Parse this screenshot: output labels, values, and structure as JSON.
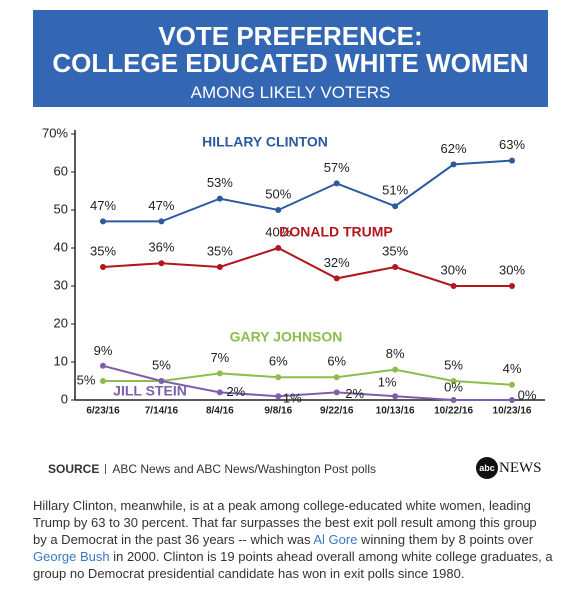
{
  "header": {
    "title_lines": [
      "VOTE PREFERENCE:",
      "COLLEGE EDUCATED WHITE WOMEN"
    ],
    "subtitle": "AMONG LIKELY VOTERS"
  },
  "chart_data": {
    "type": "line",
    "categories": [
      "6/23/16",
      "7/14/16",
      "8/4/16",
      "9/8/16",
      "9/22/16",
      "10/13/16",
      "10/22/16",
      "10/23/16"
    ],
    "series": [
      {
        "name": "HILLARY CLINTON",
        "color": "#2c5a9e",
        "values": [
          47,
          47,
          53,
          50,
          57,
          51,
          62,
          63
        ],
        "value_labels": [
          "47%",
          "47%",
          "53%",
          "50%",
          "57%",
          "51%",
          "62%",
          "63%"
        ]
      },
      {
        "name": "DONALD TRUMP",
        "color": "#b3161d",
        "values": [
          35,
          36,
          35,
          40,
          32,
          35,
          30,
          30
        ],
        "value_labels": [
          "35%",
          "36%",
          "35%",
          "40%",
          "32%",
          "35%",
          "30%",
          "30%"
        ]
      },
      {
        "name": "GARY JOHNSON",
        "color": "#8dbd4c",
        "values": [
          5,
          5,
          7,
          6,
          6,
          8,
          5,
          4
        ],
        "value_labels": [
          "5%",
          "5%",
          "7%",
          "6%",
          "6%",
          "8%",
          "5%",
          "4%"
        ]
      },
      {
        "name": "JILL STEIN",
        "color": "#7e5fab",
        "values": [
          9,
          5,
          2,
          1,
          2,
          1,
          0,
          0
        ],
        "value_labels": [
          "9%",
          null,
          "2%",
          "1%",
          "2%",
          "1%",
          "0%",
          "0%"
        ]
      }
    ],
    "ylim": [
      0,
      70
    ],
    "yticks": [
      0,
      10,
      20,
      30,
      40,
      50,
      60,
      {
        "value": 70,
        "label": "70%"
      }
    ],
    "grid": false
  },
  "source": {
    "label": "SOURCE",
    "text": "ABC News and ABC News/Washington Post polls"
  },
  "logo": {
    "mark": "abc",
    "text": "NEWS"
  },
  "article": {
    "segments": [
      {
        "text": "Hillary Clinton, meanwhile, is at a peak among college-educated white women, leading Trump by 63 to 30 percent. That far surpasses the best exit poll result among this group by a Democrat in the past 36 years -- which was "
      },
      {
        "text": "Al Gore",
        "link": true
      },
      {
        "text": " winning them by 8 points over "
      },
      {
        "text": "George Bush",
        "link": true
      },
      {
        "text": " in 2000. Clinton is 19 points ahead overall among white college graduates, a group no Democrat presidential candidate has won in exit polls since 1980."
      }
    ]
  }
}
